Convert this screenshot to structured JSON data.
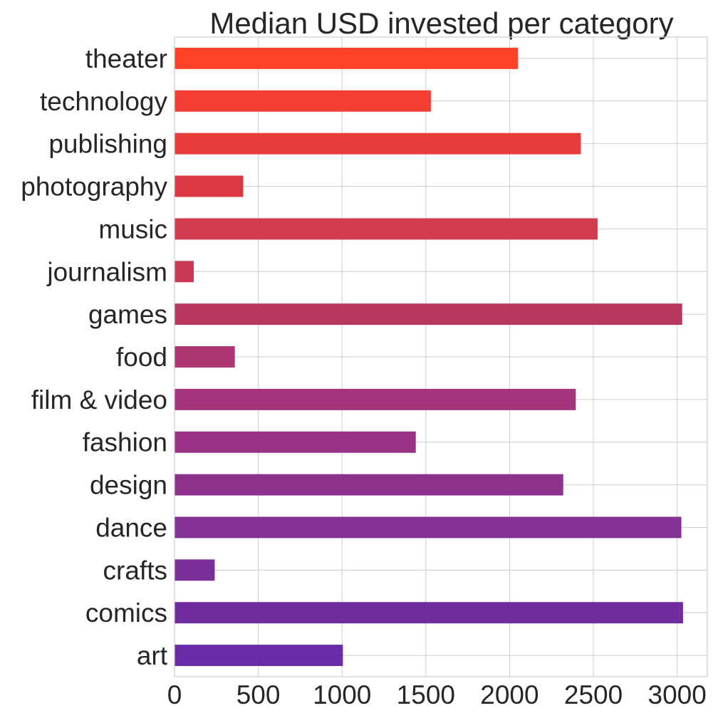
{
  "chart_data": {
    "type": "bar",
    "orientation": "horizontal",
    "title": "Median USD invested per category",
    "xlabel": "",
    "ylabel": "",
    "xlim": [
      0,
      3180
    ],
    "xticks": [
      0,
      500,
      1000,
      1500,
      2000,
      2500,
      3000
    ],
    "grid": true,
    "categories": [
      "art",
      "comics",
      "crafts",
      "dance",
      "design",
      "fashion",
      "film & video",
      "food",
      "games",
      "journalism",
      "music",
      "photography",
      "publishing",
      "technology",
      "theater"
    ],
    "values": [
      1005,
      3035,
      240,
      3025,
      2320,
      1440,
      2395,
      360,
      3030,
      115,
      2525,
      410,
      2425,
      1530,
      2050
    ],
    "colors": [
      "#6a2ba8",
      "#712d9f",
      "#7b2f98",
      "#833193",
      "#8c318c",
      "#993285",
      "#a3337a",
      "#ad3571",
      "#b9385f",
      "#c93953",
      "#d13c4f",
      "#db3a45",
      "#e63d3c",
      "#f23e33",
      "#ff4228"
    ]
  }
}
